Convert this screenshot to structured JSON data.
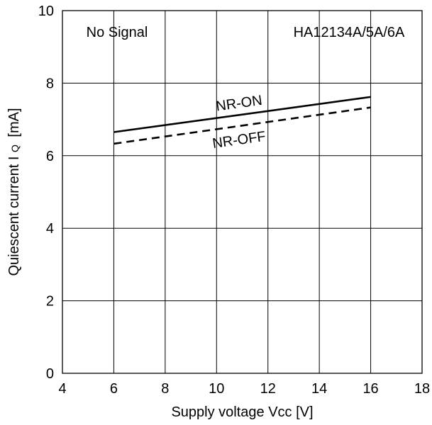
{
  "chart_data": {
    "type": "line",
    "annotations": {
      "condition": "No Signal",
      "part_number": "HA12134A/5A/6A"
    },
    "xlabel": "Supply voltage Vcc [V]",
    "ylabel": {
      "main": "Quiescent current I",
      "subscript": "Q",
      "unit": "[mA]"
    },
    "xlim": [
      4,
      18
    ],
    "ylim": [
      0,
      10
    ],
    "xticks": [
      4,
      6,
      8,
      10,
      12,
      14,
      16,
      18
    ],
    "yticks": [
      0,
      2,
      4,
      6,
      8,
      10
    ],
    "grid": true,
    "series": [
      {
        "name": "NR-ON",
        "x": [
          6,
          16
        ],
        "y": [
          6.65,
          7.62
        ],
        "line_style": "solid"
      },
      {
        "name": "NR-OFF",
        "x": [
          6,
          16
        ],
        "y": [
          6.33,
          7.33
        ],
        "line_style": "dashed"
      }
    ]
  }
}
